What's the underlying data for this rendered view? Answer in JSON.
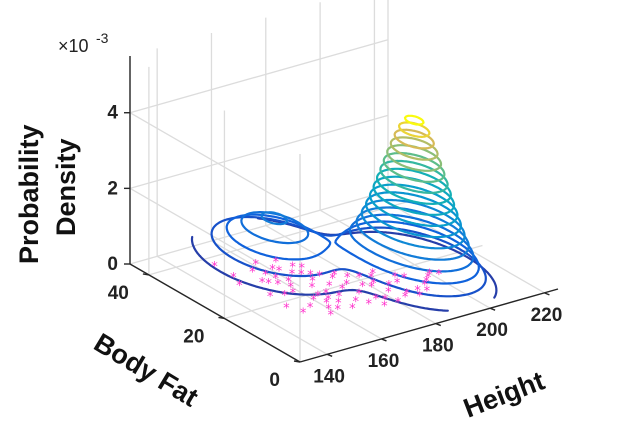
{
  "chart_data": {
    "type": "3d-contour-scatter",
    "x_axis": {
      "label": "Height",
      "ticks": [
        140,
        160,
        180,
        200,
        220
      ],
      "range": [
        130,
        225
      ]
    },
    "y_axis": {
      "label": "Body Fat",
      "ticks": [
        0,
        20,
        40
      ],
      "range": [
        0,
        45
      ]
    },
    "z_axis": {
      "label_lines": [
        "Probability",
        "Density"
      ],
      "ticks": [
        0,
        2,
        4
      ],
      "tick_labels": [
        "0",
        "2",
        "4"
      ],
      "range": [
        0,
        5.5
      ],
      "scale_label": "×10",
      "scale_exponent": "-3"
    },
    "grid": true,
    "contour_levels": [
      0.25,
      0.5,
      0.75,
      1.0,
      1.25,
      1.5,
      1.75,
      2.0,
      2.25,
      2.5,
      2.75,
      3.0,
      3.25,
      3.5,
      3.75,
      4.0,
      4.25
    ],
    "peaks": [
      {
        "height": 193,
        "body_fat": 15,
        "peak_density": 4.4,
        "sigma_height": 8,
        "sigma_body_fat": 7
      },
      {
        "height": 165,
        "body_fat": 32,
        "peak_density": 1.3,
        "sigma_height": 11,
        "sigma_body_fat": 9
      }
    ],
    "scatter": {
      "marker": "*",
      "color": "#ff33cc",
      "points": [
        [
          150,
          37
        ],
        [
          150,
          32
        ],
        [
          148,
          29
        ],
        [
          151,
          23
        ],
        [
          150,
          18
        ],
        [
          152,
          15
        ],
        [
          155,
          22
        ],
        [
          158,
          22
        ],
        [
          160,
          24
        ],
        [
          156,
          16
        ],
        [
          158,
          12
        ],
        [
          160,
          14
        ],
        [
          162,
          13
        ],
        [
          163,
          19
        ],
        [
          165,
          15
        ],
        [
          166,
          12
        ],
        [
          168,
          17
        ],
        [
          170,
          14
        ],
        [
          172,
          12
        ],
        [
          174,
          16
        ],
        [
          175,
          10
        ],
        [
          176,
          13
        ],
        [
          178,
          12
        ],
        [
          180,
          10
        ],
        [
          182,
          14
        ],
        [
          184,
          11
        ],
        [
          186,
          12
        ],
        [
          188,
          10
        ],
        [
          190,
          12
        ],
        [
          192,
          11
        ],
        [
          194,
          13
        ],
        [
          196,
          14
        ],
        [
          198,
          15
        ],
        [
          200,
          16
        ],
        [
          202,
          15
        ],
        [
          170,
          21
        ],
        [
          172,
          19
        ],
        [
          175,
          20
        ],
        [
          178,
          18
        ],
        [
          180,
          17
        ],
        [
          182,
          18
        ],
        [
          185,
          16
        ],
        [
          188,
          16
        ],
        [
          190,
          18
        ],
        [
          192,
          17
        ],
        [
          168,
          24
        ],
        [
          165,
          22
        ],
        [
          162,
          26
        ],
        [
          160,
          28
        ],
        [
          158,
          26
        ],
        [
          156,
          27
        ],
        [
          164,
          30
        ],
        [
          166,
          28
        ],
        [
          168,
          27
        ],
        [
          170,
          26
        ],
        [
          172,
          25
        ],
        [
          174,
          23
        ],
        [
          176,
          24
        ],
        [
          178,
          22
        ],
        [
          181,
          21
        ],
        [
          184,
          20
        ],
        [
          186,
          21
        ],
        [
          160,
          18
        ],
        [
          162,
          16
        ],
        [
          164,
          17
        ],
        [
          166,
          19
        ],
        [
          155,
          28
        ],
        [
          157,
          32
        ],
        [
          159,
          30
        ],
        [
          161,
          34
        ],
        [
          163,
          31
        ],
        [
          167,
          33
        ],
        [
          169,
          30
        ],
        [
          171,
          29
        ]
      ]
    }
  }
}
